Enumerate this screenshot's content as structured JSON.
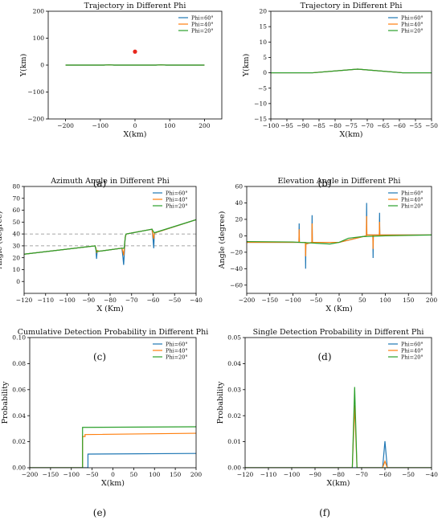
{
  "colors": {
    "phi60": "#1f77b4",
    "phi40": "#ff7f0e",
    "phi20": "#2ca02c",
    "marker": "#e8261c",
    "ref": "#888888"
  },
  "chart_data": [
    {
      "id": "a",
      "type": "line",
      "caption": "(a)",
      "title": "Trajectory in Different Phi",
      "xlabel": "X(km)",
      "ylabel": "Y(km)",
      "xlim": [
        -250,
        250
      ],
      "ylim": [
        -200,
        200
      ],
      "xticks": [
        -200,
        -100,
        0,
        100,
        200
      ],
      "yticks": [
        -200,
        -100,
        0,
        100,
        200
      ],
      "legend": {
        "placement": "top-right",
        "entries": [
          "Phi=60°",
          "Phi=40°",
          "Phi=20°"
        ]
      },
      "series": [
        {
          "name": "Phi=60°",
          "color": "#1f77b4",
          "x": [
            -200,
            -90,
            -75,
            -60,
            60,
            75,
            90,
            200
          ],
          "y": [
            0,
            0,
            1,
            0,
            0,
            1,
            0,
            0
          ]
        },
        {
          "name": "Phi=40°",
          "color": "#ff7f0e",
          "x": [
            -200,
            -90,
            -75,
            -60,
            60,
            75,
            90,
            200
          ],
          "y": [
            0,
            0,
            1,
            0,
            0,
            1,
            0,
            0
          ]
        },
        {
          "name": "Phi=20°",
          "color": "#2ca02c",
          "x": [
            -200,
            -90,
            -75,
            -60,
            60,
            75,
            90,
            200
          ],
          "y": [
            0,
            0,
            1,
            0,
            0,
            1,
            0,
            0
          ]
        }
      ],
      "markers": [
        {
          "x": 0,
          "y": 50,
          "color": "#e8261c"
        }
      ]
    },
    {
      "id": "b",
      "type": "line",
      "caption": "(b)",
      "title": "Trajectory in Different Phi",
      "xlabel": "X(km)",
      "ylabel": "Y(km)",
      "xlim": [
        -100,
        -50
      ],
      "ylim": [
        -15,
        20
      ],
      "xticks": [
        -100,
        -95,
        -90,
        -85,
        -80,
        -75,
        -70,
        -65,
        -60,
        -55,
        -50
      ],
      "yticks": [
        -15,
        -10,
        -5,
        0,
        5,
        10,
        15,
        20
      ],
      "legend": {
        "placement": "top-right",
        "entries": [
          "Phi=60°",
          "Phi=40°",
          "Phi=20°"
        ]
      },
      "series": [
        {
          "name": "Phi=60°",
          "color": "#1f77b4",
          "x": [
            -100,
            -87,
            -73,
            -59,
            -50
          ],
          "y": [
            0,
            0,
            1.2,
            0,
            0
          ]
        },
        {
          "name": "Phi=40°",
          "color": "#ff7f0e",
          "x": [
            -100,
            -87,
            -73,
            -59,
            -50
          ],
          "y": [
            0,
            0,
            1.2,
            0,
            0
          ]
        },
        {
          "name": "Phi=20°",
          "color": "#2ca02c",
          "x": [
            -100,
            -87,
            -73,
            -59,
            -50
          ],
          "y": [
            0,
            0,
            1.2,
            0,
            0
          ]
        }
      ]
    },
    {
      "id": "c",
      "type": "line",
      "caption": "(c)",
      "title": "Azimuth Angle in Different Phi",
      "xlabel": "X (Km)",
      "ylabel": "Angle (degree)",
      "xlim": [
        -120,
        -40
      ],
      "ylim": [
        -10,
        80
      ],
      "xticks": [
        -120,
        -110,
        -100,
        -90,
        -80,
        -70,
        -60,
        -50,
        -40
      ],
      "yticks": [
        0,
        10,
        20,
        30,
        40,
        50,
        60,
        70,
        80
      ],
      "legend": {
        "placement": "top-right",
        "entries": [
          "Phi=60°",
          "Phi=40°",
          "Phi=20°"
        ]
      },
      "ref_lines": [
        30,
        40
      ],
      "series": [
        {
          "name": "Phi=60°",
          "color": "#1f77b4",
          "x": [
            -120,
            -87,
            -86.6,
            -86.3,
            -86,
            -85,
            -74.5,
            -74,
            -73.7,
            -73.3,
            -73,
            -72.5,
            -60.5,
            -60,
            -59.7,
            -59.4,
            -59,
            -40
          ],
          "y": [
            23,
            30,
            27,
            19,
            26,
            25.5,
            28,
            20,
            14,
            26,
            37,
            40,
            44,
            35,
            28,
            41,
            41,
            52
          ]
        },
        {
          "name": "Phi=40°",
          "color": "#ff7f0e",
          "x": [
            -120,
            -87,
            -86.6,
            -86.3,
            -86,
            -85,
            -74.5,
            -74,
            -73.7,
            -73.3,
            -73,
            -72.5,
            -60.5,
            -60,
            -59.7,
            -59.4,
            -59,
            -40
          ],
          "y": [
            23,
            30,
            28,
            24,
            26,
            25.5,
            28,
            25,
            22,
            29,
            37,
            40,
            44,
            38,
            36,
            41,
            41,
            52
          ]
        },
        {
          "name": "Phi=20°",
          "color": "#2ca02c",
          "x": [
            -120,
            -87,
            -86.3,
            -85,
            -74.5,
            -73.5,
            -72.8,
            -72.5,
            -60.5,
            -59.5,
            -40
          ],
          "y": [
            23,
            30,
            25,
            25.5,
            28,
            28,
            39,
            40,
            44,
            41,
            52
          ]
        }
      ]
    },
    {
      "id": "d",
      "type": "line",
      "caption": "(d)",
      "title": "Elevation Angle in Different Phi",
      "xlabel": "X (Km)",
      "ylabel": "Angle (degree)",
      "xlim": [
        -200,
        200
      ],
      "ylim": [
        -70,
        60
      ],
      "xticks": [
        -200,
        -150,
        -100,
        -50,
        0,
        50,
        100,
        150,
        200
      ],
      "yticks": [
        -60,
        -40,
        -20,
        0,
        20,
        40,
        60
      ],
      "legend": {
        "placement": "top-right",
        "entries": [
          "Phi=60°",
          "Phi=40°",
          "Phi=20°"
        ]
      },
      "series": [
        {
          "name": "Phi=60°",
          "color": "#1f77b4",
          "x": [
            -200,
            -87,
            -86.5,
            -86,
            -73,
            -72.5,
            -72,
            -59,
            -58.5,
            -58,
            0,
            59,
            59.5,
            60,
            73,
            73.5,
            74,
            87,
            87.5,
            88,
            200
          ],
          "y": [
            -8,
            -8,
            15,
            -8,
            -8,
            -40,
            -10,
            -8,
            25,
            -8,
            -8,
            0,
            40,
            1,
            1,
            -27,
            1,
            1,
            28,
            1,
            1
          ]
        },
        {
          "name": "Phi=40°",
          "color": "#ff7f0e",
          "x": [
            -200,
            -87,
            -86.5,
            -86,
            -73,
            -72.5,
            -72,
            -59,
            -58.5,
            -58,
            0,
            59,
            59.5,
            60,
            73,
            73.5,
            74,
            87,
            87.5,
            88,
            200
          ],
          "y": [
            -8,
            -8,
            8,
            -8,
            -8,
            -25,
            -10,
            -8,
            15,
            -8,
            -8,
            0,
            24,
            1,
            1,
            -16,
            1,
            1,
            17,
            1,
            1
          ]
        },
        {
          "name": "Phi=20°",
          "color": "#2ca02c",
          "x": [
            -200,
            -100,
            -50,
            -20,
            0,
            20,
            50,
            100,
            150,
            200
          ],
          "y": [
            -7,
            -7.5,
            -9,
            -10,
            -8,
            -3,
            -1,
            0,
            0.5,
            1
          ]
        }
      ]
    },
    {
      "id": "e",
      "type": "line",
      "caption": "(e)",
      "title": "Cumulative Detection Probability in Different Phi",
      "xlabel": "X(km)",
      "ylabel": "Probability",
      "xlim": [
        -200,
        200
      ],
      "ylim": [
        0,
        0.1
      ],
      "xticks": [
        -200,
        -150,
        -100,
        -50,
        0,
        50,
        100,
        150,
        200
      ],
      "yticks": [
        0.0,
        0.02,
        0.04,
        0.06,
        0.08,
        0.1
      ],
      "ytick_labels": [
        "0.00",
        "0.02",
        "0.04",
        "0.06",
        "0.08",
        "0.10"
      ],
      "legend": {
        "placement": "top-right",
        "entries": [
          "Phi=60°",
          "Phi=40°",
          "Phi=20°"
        ]
      },
      "series": [
        {
          "name": "Phi=60°",
          "color": "#1f77b4",
          "x": [
            -200,
            -60,
            -60,
            200
          ],
          "y": [
            0,
            0,
            0.0105,
            0.011
          ]
        },
        {
          "name": "Phi=40°",
          "color": "#ff7f0e",
          "x": [
            -200,
            -73,
            -73,
            -67,
            -67,
            200
          ],
          "y": [
            0,
            0,
            0.024,
            0.024,
            0.0255,
            0.0265
          ]
        },
        {
          "name": "Phi=20°",
          "color": "#2ca02c",
          "x": [
            -200,
            -73,
            -73,
            200
          ],
          "y": [
            0,
            0,
            0.031,
            0.0315
          ]
        }
      ]
    },
    {
      "id": "f",
      "type": "line",
      "caption": "(f)",
      "title": "Single Detection Probability in Different Phi",
      "xlabel": "X(km)",
      "ylabel": "Probability",
      "xlim": [
        -120,
        -40
      ],
      "ylim": [
        0,
        0.05
      ],
      "xticks": [
        -120,
        -110,
        -100,
        -90,
        -80,
        -70,
        -60,
        -50,
        -40
      ],
      "yticks": [
        0.0,
        0.01,
        0.02,
        0.03,
        0.04,
        0.05
      ],
      "ytick_labels": [
        "0.00",
        "0.01",
        "0.02",
        "0.03",
        "0.04",
        "0.05"
      ],
      "legend": {
        "placement": "top-right",
        "entries": [
          "Phi=60°",
          "Phi=40°",
          "Phi=20°"
        ]
      },
      "series": [
        {
          "name": "Phi=60°",
          "color": "#1f77b4",
          "x": [
            -120,
            -61,
            -60,
            -59,
            -40
          ],
          "y": [
            0,
            0,
            0.0102,
            0,
            0
          ]
        },
        {
          "name": "Phi=40°",
          "color": "#ff7f0e",
          "x": [
            -120,
            -74,
            -73,
            -72,
            -61,
            -60,
            -59,
            -40
          ],
          "y": [
            0,
            0,
            0.024,
            0,
            0,
            0.0025,
            0,
            0
          ]
        },
        {
          "name": "Phi=20°",
          "color": "#2ca02c",
          "x": [
            -120,
            -74,
            -73,
            -72,
            -40
          ],
          "y": [
            0,
            0,
            0.031,
            0,
            0
          ]
        }
      ]
    }
  ]
}
